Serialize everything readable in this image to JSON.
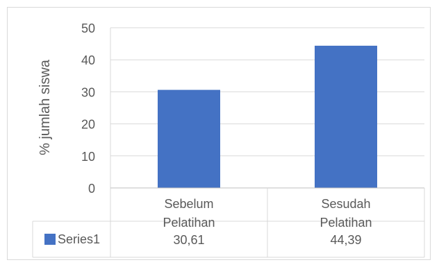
{
  "chart_data": {
    "type": "bar",
    "categories": [
      [
        "Sebelum",
        "Pelatihan"
      ],
      [
        "Sesudah",
        "Pelatihan"
      ]
    ],
    "series": [
      {
        "name": "Series1",
        "values": [
          30.61,
          44.39
        ],
        "value_labels": [
          "30,61",
          "44,39"
        ],
        "color": "#4472c4"
      }
    ],
    "ylabel": "% jumlah siswa",
    "xlabel": "",
    "title": "",
    "ylim": [
      0,
      50
    ],
    "yticks": [
      0,
      10,
      20,
      30,
      40,
      50
    ],
    "grid": true,
    "legend": "data-table"
  }
}
